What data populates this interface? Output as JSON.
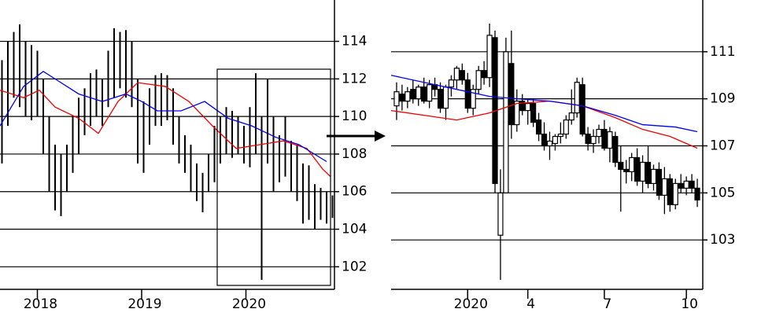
{
  "chart_data": [
    {
      "type": "ohlc",
      "x": [
        1,
        4,
        7,
        10,
        13,
        16,
        19,
        22,
        25,
        28,
        31,
        34,
        37,
        40,
        43,
        46,
        49,
        52,
        55,
        58,
        61,
        64,
        67,
        70,
        73,
        76,
        79,
        82,
        85,
        88,
        91,
        94,
        97,
        100,
        103,
        106,
        109,
        112,
        115,
        118,
        121,
        124,
        127,
        130,
        133,
        136,
        139,
        142,
        145,
        148,
        151,
        154,
        157,
        160,
        163,
        166,
        169
      ],
      "high": [
        113.0,
        114.0,
        114.5,
        114.9,
        114.0,
        113.8,
        113.5,
        112.0,
        110.0,
        108.5,
        108.0,
        108.5,
        110.0,
        111.0,
        111.5,
        112.3,
        112.5,
        112.0,
        113.5,
        114.7,
        114.5,
        114.6,
        114.0,
        112.0,
        110.8,
        111.5,
        112.2,
        112.3,
        112.2,
        111.5,
        110.0,
        109.0,
        108.5,
        107.5,
        107.0,
        108.0,
        109.5,
        110.0,
        110.5,
        110.3,
        110.0,
        109.5,
        110.5,
        112.3,
        110.0,
        112.0,
        110.0,
        109.0,
        110.0,
        108.7,
        108.5,
        107.5,
        107.4,
        106.4,
        106.2,
        106.0,
        105.8
      ],
      "low": [
        107.5,
        109.5,
        111.0,
        110.5,
        110.0,
        109.8,
        110.0,
        108.0,
        106.0,
        105.0,
        104.7,
        106.0,
        107.0,
        108.0,
        109.0,
        109.5,
        110.0,
        109.5,
        110.5,
        111.0,
        111.5,
        111.0,
        110.5,
        107.5,
        107.0,
        108.5,
        109.5,
        109.5,
        109.8,
        108.5,
        107.5,
        107.0,
        106.0,
        105.5,
        104.9,
        106.0,
        106.5,
        107.5,
        108.0,
        107.8,
        108.0,
        107.5,
        107.3,
        108.0,
        101.3,
        107.5,
        106.0,
        106.5,
        106.8,
        106.0,
        105.5,
        104.3,
        104.5,
        104.0,
        104.5,
        104.3,
        104.6
      ],
      "color": "#000000",
      "lines": [
        {
          "color": "#ee0000",
          "x": [
            0,
            12,
            20,
            28,
            40,
            50,
            60,
            70,
            84,
            96,
            108,
            120,
            132,
            144,
            156,
            164,
            168
          ],
          "values": [
            111.4,
            111.0,
            111.4,
            110.5,
            109.9,
            109.1,
            110.8,
            111.8,
            111.6,
            110.8,
            109.5,
            108.3,
            108.5,
            108.7,
            108.3,
            107.2,
            106.8
          ]
        },
        {
          "color": "#0000ee",
          "x": [
            0,
            12,
            22,
            28,
            40,
            52,
            64,
            72,
            80,
            92,
            104,
            116,
            128,
            140,
            152,
            166
          ],
          "values": [
            109.5,
            111.6,
            112.4,
            112.0,
            111.2,
            110.8,
            111.2,
            110.8,
            110.3,
            110.3,
            110.8,
            109.9,
            109.5,
            108.9,
            108.5,
            107.6
          ]
        }
      ],
      "xlim": [
        0,
        170
      ],
      "xticks": [
        {
          "value": 19,
          "label": "2018"
        },
        {
          "value": 72,
          "label": "2019"
        },
        {
          "value": 125,
          "label": "2020"
        }
      ],
      "ylim": [
        100.8,
        116.2
      ],
      "yticks": [
        102,
        104,
        106,
        108,
        110,
        112,
        114
      ],
      "grid": true
    },
    {
      "type": "candlestick",
      "x": [
        1,
        2,
        3,
        4,
        5,
        6,
        7,
        8,
        9,
        10,
        11,
        12,
        13,
        14,
        15,
        16,
        17,
        18,
        19,
        20,
        21,
        22,
        23,
        24,
        25,
        26,
        27,
        28,
        29,
        30,
        31,
        32,
        33,
        34,
        35,
        36,
        37,
        38,
        39,
        40,
        41,
        42,
        43,
        44,
        45,
        46,
        47,
        48,
        49,
        50,
        51,
        52,
        53,
        54,
        55,
        56
      ],
      "open": [
        108.7,
        109.2,
        108.9,
        109.4,
        109.0,
        109.5,
        108.9,
        109.6,
        109.4,
        108.6,
        109.5,
        109.8,
        110.2,
        109.8,
        108.6,
        109.4,
        110.2,
        109.9,
        111.6,
        103.2,
        105.0,
        110.5,
        107.9,
        108.9,
        108.5,
        108.8,
        108.1,
        107.5,
        107.0,
        107.1,
        107.4,
        107.5,
        108.1,
        108.4,
        109.6,
        107.5,
        107.1,
        107.4,
        107.7,
        106.9,
        107.4,
        106.3,
        106.0,
        105.9,
        106.5,
        105.5,
        106.3,
        105.4,
        106.0,
        104.9,
        105.6,
        104.5,
        105.4,
        105.2,
        105.5,
        105.2
      ],
      "high": [
        109.7,
        109.6,
        109.5,
        109.8,
        109.6,
        109.9,
        109.8,
        109.9,
        109.7,
        109.6,
        110.0,
        110.4,
        110.5,
        110.1,
        109.6,
        110.4,
        110.6,
        112.2,
        111.9,
        106.0,
        111.6,
        111.9,
        109.4,
        109.2,
        109.0,
        109.0,
        108.4,
        108.0,
        107.6,
        107.5,
        108.0,
        108.3,
        109.4,
        109.9,
        109.9,
        107.8,
        107.7,
        107.9,
        108.1,
        107.8,
        107.6,
        107.0,
        106.4,
        106.7,
        106.9,
        106.6,
        107.0,
        106.2,
        106.3,
        106.1,
        105.8,
        105.6,
        105.8,
        105.7,
        105.8,
        105.6
      ],
      "low": [
        108.1,
        108.5,
        108.6,
        108.8,
        108.7,
        108.8,
        108.6,
        109.1,
        108.4,
        108.1,
        109.1,
        109.4,
        109.6,
        108.4,
        108.3,
        109.2,
        109.6,
        109.5,
        105.0,
        101.3,
        105.0,
        107.3,
        107.6,
        108.3,
        107.9,
        107.8,
        107.2,
        106.8,
        106.4,
        106.8,
        107.1,
        107.3,
        107.9,
        108.2,
        107.4,
        106.8,
        106.7,
        107.1,
        106.8,
        106.3,
        106.1,
        104.2,
        105.4,
        105.5,
        105.3,
        105.0,
        105.2,
        105.1,
        104.7,
        104.1,
        104.2,
        104.3,
        105.0,
        104.9,
        105.0,
        104.4
      ],
      "close": [
        109.3,
        108.9,
        109.3,
        109.0,
        109.5,
        108.9,
        109.6,
        109.4,
        108.6,
        109.5,
        109.8,
        110.3,
        109.8,
        108.6,
        109.4,
        110.2,
        109.9,
        111.7,
        105.4,
        105.0,
        111.0,
        107.9,
        108.9,
        108.5,
        108.8,
        108.0,
        107.5,
        107.0,
        107.2,
        107.4,
        107.5,
        108.1,
        108.4,
        109.7,
        107.5,
        107.1,
        107.4,
        107.7,
        106.9,
        107.6,
        106.3,
        106.0,
        105.9,
        106.5,
        105.5,
        106.3,
        105.4,
        106.0,
        104.9,
        105.6,
        104.5,
        105.4,
        105.2,
        105.5,
        105.2,
        104.7
      ],
      "color": "#000000",
      "lines": [
        {
          "color": "#ee0000",
          "x": [
            0,
            6,
            12,
            18,
            23,
            29,
            35,
            41,
            46,
            51,
            54,
            56
          ],
          "values": [
            108.5,
            108.3,
            108.1,
            108.4,
            108.8,
            108.9,
            108.7,
            108.2,
            107.7,
            107.4,
            107.1,
            106.9
          ]
        },
        {
          "color": "#0000ee",
          "x": [
            0,
            6,
            12,
            18,
            23,
            29,
            35,
            41,
            46,
            52,
            56
          ],
          "values": [
            110.0,
            109.7,
            109.4,
            109.1,
            109.0,
            108.9,
            108.7,
            108.3,
            107.9,
            107.8,
            107.6
          ]
        }
      ],
      "xlim": [
        0,
        57
      ],
      "xticks": [
        {
          "value": 14,
          "label": "2020"
        },
        {
          "value": 25,
          "label": "4"
        },
        {
          "value": 39,
          "label": "7"
        },
        {
          "value": 54,
          "label": "10"
        }
      ],
      "ylim": [
        100.9,
        113.2
      ],
      "yticks": [
        103,
        105,
        107,
        109,
        111
      ],
      "grid": true
    }
  ]
}
